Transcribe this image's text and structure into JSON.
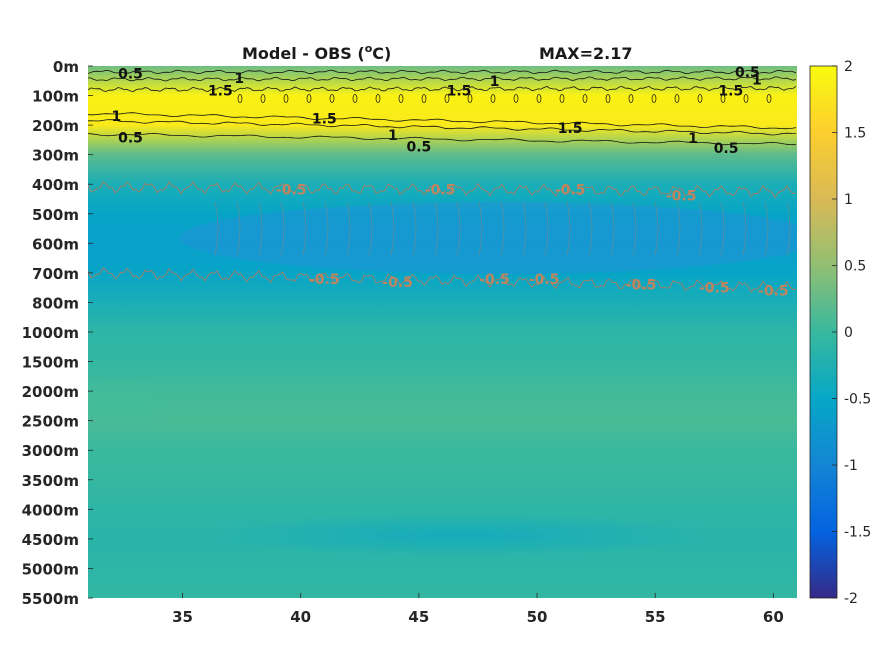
{
  "chart_data": {
    "type": "heatmap",
    "title": "Model - OBS (°C)",
    "title_main": "Model - OBS (",
    "title_sup": "o",
    "title_unit": "C)",
    "max_label": "MAX=2.17",
    "x_ticks": [
      "35",
      "40",
      "45",
      "50",
      "55",
      "60"
    ],
    "x_tick_values": [
      35,
      40,
      45,
      50,
      55,
      60
    ],
    "xlim": [
      31,
      61
    ],
    "y_ticks": [
      "0m",
      "100m",
      "200m",
      "300m",
      "400m",
      "500m",
      "600m",
      "700m",
      "800m",
      "1000m",
      "1500m",
      "2000m",
      "2500m",
      "3000m",
      "3500m",
      "4000m",
      "4500m",
      "5000m",
      "5500m"
    ],
    "colorbar_ticks": [
      "2",
      "1.5",
      "1",
      "0.5",
      "0",
      "-0.5",
      "-1",
      "-1.5",
      "-2"
    ],
    "colorbar_values": [
      2,
      1.5,
      1,
      0.5,
      0,
      -0.5,
      -1,
      -1.5,
      -2
    ],
    "clim": [
      -2,
      2
    ],
    "colormap": "parula",
    "depth_profile": [
      0.3,
      1.9,
      1.8,
      0.2,
      -0.3,
      -0.55,
      -0.6,
      -0.55,
      -0.3,
      -0.1,
      -0.05,
      0.05,
      0.1,
      0.0,
      -0.02,
      -0.1,
      -0.15,
      -0.1,
      -0.05
    ],
    "contour_labels": [
      {
        "text": "0.5",
        "x": 32.8,
        "d": 0.25,
        "color": "#111111"
      },
      {
        "text": "1",
        "x": 37.4,
        "d": 0.4,
        "color": "#111111"
      },
      {
        "text": "1.5",
        "x": 36.6,
        "d": 0.83,
        "color": "#111111"
      },
      {
        "text": "1",
        "x": 48.2,
        "d": 0.5,
        "color": "#111111"
      },
      {
        "text": "1.5",
        "x": 46.7,
        "d": 0.83,
        "color": "#111111"
      },
      {
        "text": "0.5",
        "x": 58.9,
        "d": 0.2,
        "color": "#111111"
      },
      {
        "text": "1",
        "x": 59.3,
        "d": 0.45,
        "color": "#111111"
      },
      {
        "text": "1.5",
        "x": 58.2,
        "d": 0.83,
        "color": "#111111"
      },
      {
        "text": "1",
        "x": 32.2,
        "d": 1.7,
        "color": "#111111"
      },
      {
        "text": "1.5",
        "x": 41.0,
        "d": 1.78,
        "color": "#111111"
      },
      {
        "text": "1.5",
        "x": 51.4,
        "d": 2.1,
        "color": "#111111"
      },
      {
        "text": "0.5",
        "x": 32.8,
        "d": 2.42,
        "color": "#111111"
      },
      {
        "text": "1",
        "x": 43.9,
        "d": 2.33,
        "color": "#111111"
      },
      {
        "text": "0.5",
        "x": 45.0,
        "d": 2.72,
        "color": "#111111"
      },
      {
        "text": "1",
        "x": 56.6,
        "d": 2.43,
        "color": "#111111"
      },
      {
        "text": "0.5",
        "x": 58.0,
        "d": 2.77,
        "color": "#111111"
      },
      {
        "text": "-0.5",
        "x": 39.6,
        "d": 4.18,
        "color": "#c0855f"
      },
      {
        "text": "-0.5",
        "x": 45.9,
        "d": 4.18,
        "color": "#c0855f"
      },
      {
        "text": "-0.5",
        "x": 51.4,
        "d": 4.18,
        "color": "#c0855f"
      },
      {
        "text": "-0.5",
        "x": 56.1,
        "d": 4.38,
        "color": "#c0855f"
      },
      {
        "text": "-0.5",
        "x": 41.0,
        "d": 7.2,
        "color": "#c0855f"
      },
      {
        "text": "-0.5",
        "x": 44.1,
        "d": 7.3,
        "color": "#c0855f"
      },
      {
        "text": "-0.5",
        "x": 48.2,
        "d": 7.2,
        "color": "#c0855f"
      },
      {
        "text": "-0.5",
        "x": 50.3,
        "d": 7.2,
        "color": "#c0855f"
      },
      {
        "text": "-0.5",
        "x": 54.4,
        "d": 7.4,
        "color": "#c0855f"
      },
      {
        "text": "-0.5",
        "x": 57.5,
        "d": 7.5,
        "color": "#c0855f"
      },
      {
        "text": "-0.5",
        "x": 60.0,
        "d": 7.6,
        "color": "#c0855f"
      }
    ]
  }
}
